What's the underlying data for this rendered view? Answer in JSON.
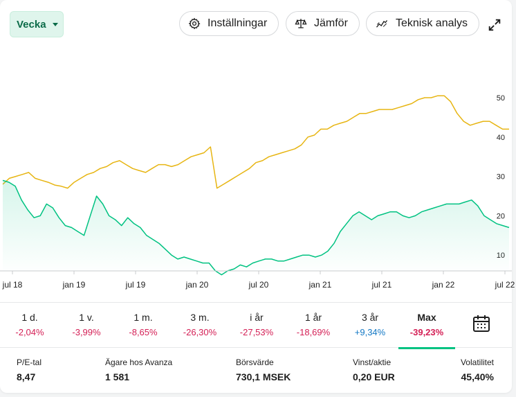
{
  "toolbar": {
    "period_label": "Vecka",
    "settings_label": "Inställningar",
    "compare_label": "Jämför",
    "technical_label": "Teknisk analys"
  },
  "chart_data": {
    "type": "line",
    "x_ticks": [
      "jul 18",
      "jan 19",
      "jul 19",
      "jan 20",
      "jul 20",
      "jan 21",
      "jul 21",
      "jan 22",
      "jul 22"
    ],
    "y_ticks": [
      10,
      20,
      30,
      40,
      50
    ],
    "ylim": [
      0,
      55
    ],
    "series": [
      {
        "color": "#e7b512",
        "values": [
          28,
          29.5,
          30,
          30.5,
          31,
          29.5,
          29,
          28.5,
          27.8,
          27.5,
          27,
          28.5,
          29.5,
          30.5,
          31,
          32,
          32.5,
          33.5,
          34,
          33,
          32,
          31.5,
          31,
          32,
          33,
          33,
          32.5,
          33,
          34,
          35,
          35.5,
          36,
          37.5,
          27,
          28,
          29,
          30,
          31,
          32,
          33.5,
          34,
          35,
          35.5,
          36,
          36.5,
          37,
          38,
          40,
          40.5,
          42,
          42,
          43,
          43.5,
          44,
          45,
          46,
          46,
          46.5,
          47,
          47,
          47,
          47.5,
          48,
          48.5,
          49.5,
          50,
          50,
          50.5,
          50.5,
          49,
          46,
          44,
          43,
          43.5,
          44,
          44,
          43,
          42,
          42
        ]
      },
      {
        "color": "#00c281",
        "values": [
          29,
          28.5,
          27.5,
          24,
          21.5,
          19.5,
          20,
          23,
          22,
          19.5,
          17.5,
          17,
          16,
          15,
          20,
          25,
          23,
          20,
          19,
          17.5,
          19.5,
          18,
          17,
          15,
          14,
          13,
          11.5,
          10,
          9,
          9.5,
          9,
          8.5,
          8,
          8,
          6,
          5,
          6,
          6.5,
          7.5,
          7,
          8,
          8.5,
          9,
          9,
          8.5,
          8.5,
          9,
          9.5,
          10,
          10,
          9.5,
          10,
          11,
          13,
          16,
          18,
          20,
          21,
          20,
          19,
          20,
          20.5,
          21,
          21,
          20,
          19.5,
          20,
          21,
          21.5,
          22,
          22.5,
          23,
          23,
          23,
          23.5,
          24,
          22.5,
          20,
          19,
          18,
          17.5,
          17
        ]
      }
    ]
  },
  "periods": [
    {
      "label": "1 d.",
      "value": "-2,04%",
      "sign": "neg"
    },
    {
      "label": "1 v.",
      "value": "-3,99%",
      "sign": "neg"
    },
    {
      "label": "1 m.",
      "value": "-8,65%",
      "sign": "neg"
    },
    {
      "label": "3 m.",
      "value": "-26,30%",
      "sign": "neg"
    },
    {
      "label": "i år",
      "value": "-27,53%",
      "sign": "neg"
    },
    {
      "label": "1 år",
      "value": "-18,69%",
      "sign": "neg"
    },
    {
      "label": "3 år",
      "value": "+9,34%",
      "sign": "pos"
    },
    {
      "label": "Max",
      "value": "-39,23%",
      "sign": "neg"
    }
  ],
  "stats": [
    {
      "key": "P/E-tal",
      "value": "8,47"
    },
    {
      "key": "Ägare hos Avanza",
      "value": "1 581"
    },
    {
      "key": "Börsvärde",
      "value": "730,1 MSEK"
    },
    {
      "key": "Vinst/aktie",
      "value": "0,20 EUR"
    },
    {
      "key": "Volatilitet",
      "value": "45,40%"
    }
  ]
}
